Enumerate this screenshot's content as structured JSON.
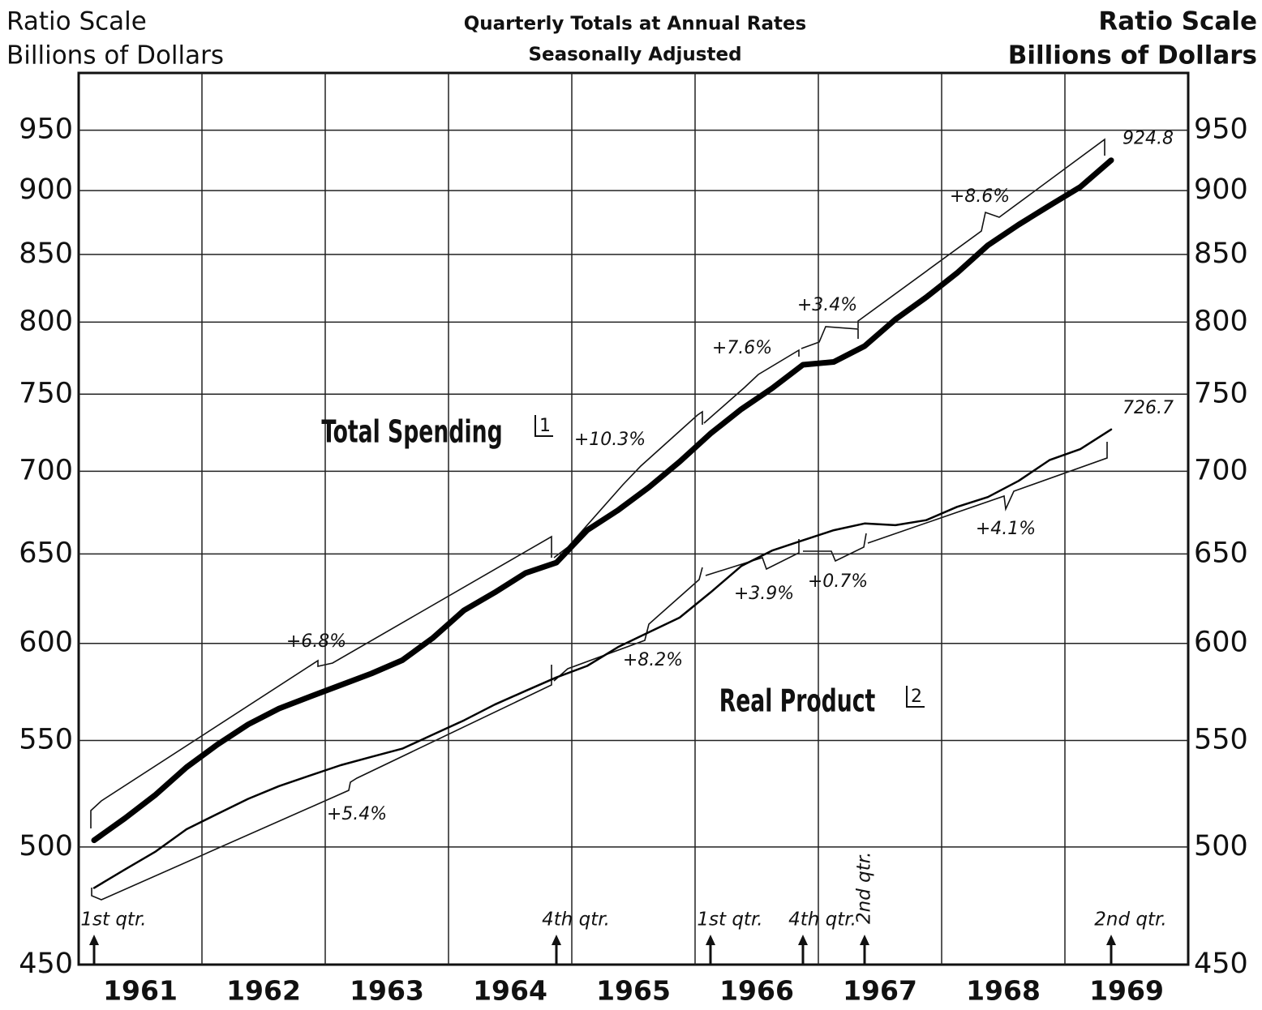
{
  "header": {
    "left": [
      "Ratio Scale",
      "Billions of Dollars"
    ],
    "right": [
      "Ratio Scale",
      "Billions of Dollars"
    ],
    "center": [
      "Quarterly Totals at Annual Rates",
      "Seasonally Adjusted"
    ]
  },
  "chart_data": {
    "type": "line",
    "log_scale": true,
    "grid": true,
    "xlim": [
      1961,
      1970
    ],
    "xgrid": [
      1962,
      1963,
      1964,
      1965,
      1966,
      1967,
      1968,
      1969
    ],
    "xticks": [
      {
        "value": 1961.5,
        "label": "1961"
      },
      {
        "value": 1962.5,
        "label": "1962"
      },
      {
        "value": 1963.5,
        "label": "1963"
      },
      {
        "value": 1964.5,
        "label": "1964"
      },
      {
        "value": 1965.5,
        "label": "1965"
      },
      {
        "value": 1966.5,
        "label": "1966"
      },
      {
        "value": 1967.5,
        "label": "1967"
      },
      {
        "value": 1968.5,
        "label": "1968"
      },
      {
        "value": 1969.5,
        "label": "1969"
      }
    ],
    "ylim": [
      450,
      1000
    ],
    "yticks": [
      450,
      500,
      550,
      600,
      650,
      700,
      750,
      800,
      850,
      900,
      950
    ],
    "x": [
      1961.125,
      1961.375,
      1961.625,
      1961.875,
      1962.125,
      1962.375,
      1962.625,
      1962.875,
      1963.125,
      1963.375,
      1963.625,
      1963.875,
      1964.125,
      1964.375,
      1964.625,
      1964.875,
      1965.125,
      1965.375,
      1965.625,
      1965.875,
      1966.125,
      1966.375,
      1966.625,
      1966.875,
      1967.125,
      1967.375,
      1967.625,
      1967.875,
      1968.125,
      1968.375,
      1968.625,
      1968.875,
      1969.125,
      1969.375
    ],
    "series": [
      {
        "name": "Total Spending",
        "footnote": "1",
        "color": "#000000",
        "values": [
          503,
          513,
          524,
          537,
          548,
          558,
          566,
          572,
          578,
          584,
          591,
          603,
          618,
          628,
          639,
          645,
          664,
          676,
          690,
          706,
          724,
          740,
          754,
          770,
          772,
          783,
          802,
          818,
          836,
          857,
          873,
          888,
          903,
          924.8
        ]
      },
      {
        "name": "Real Product",
        "footnote": "2",
        "color": "#000000",
        "values": [
          482,
          490,
          498,
          508,
          515,
          522,
          528,
          533,
          538,
          542,
          546,
          553,
          560,
          568,
          575,
          582,
          588,
          598,
          606,
          614,
          628,
          643,
          652,
          658,
          664,
          668,
          667,
          670,
          678,
          684,
          694,
          707,
          714,
          726.7
        ]
      }
    ],
    "annotations": [
      "+6.8%",
      "+5.4%",
      "+10.3%",
      "+8.2%",
      "+7.6%",
      "+3.9%",
      "+3.4%",
      "+0.7%",
      "+8.6%",
      "+4.1%"
    ],
    "quarter_markers": [
      {
        "label": "1st qtr.",
        "x": 1961.125
      },
      {
        "label": "4th qtr.",
        "x": 1964.875
      },
      {
        "label": "1st qtr.",
        "x": 1966.125
      },
      {
        "label": "4th qtr.",
        "x": 1966.875
      },
      {
        "label": "2nd qtr.",
        "x": 1967.375
      },
      {
        "label": "2nd qtr.",
        "x": 1969.375
      }
    ]
  }
}
